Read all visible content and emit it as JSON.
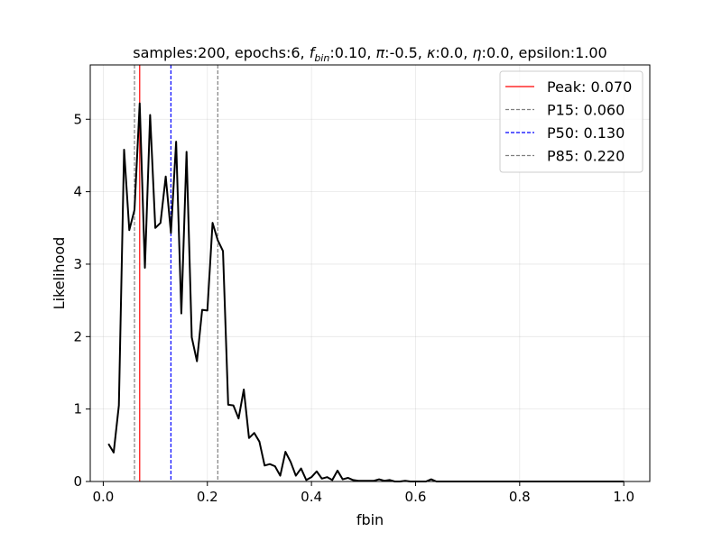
{
  "chart_data": {
    "type": "line",
    "title": {
      "prefix": "samples:200, epochs:6, ",
      "fbin_symbol": "f",
      "fbin_sub": "bin",
      "fbin_value": ":0.10, ",
      "pi_symbol": "π",
      "pi_value": ":-0.5, ",
      "kappa_symbol": "κ",
      "kappa_value": ":0.0, ",
      "eta_symbol": "η",
      "eta_value": ":0.0, epsilon:1.00"
    },
    "xlabel": "fbin",
    "ylabel": "Likelihood",
    "xlim": [
      -0.025,
      1.05
    ],
    "ylim": [
      0,
      5.75
    ],
    "xticks": [
      0.0,
      0.2,
      0.4,
      0.6,
      0.8,
      1.0
    ],
    "xtick_labels": [
      "0.0",
      "0.2",
      "0.4",
      "0.6",
      "0.8",
      "1.0"
    ],
    "yticks": [
      0,
      1,
      2,
      3,
      4,
      5
    ],
    "ytick_labels": [
      "0",
      "1",
      "2",
      "3",
      "4",
      "5"
    ],
    "grid": true,
    "legend_position": "top-right",
    "series": [
      {
        "color": "#000000",
        "x": [
          0.01,
          0.02,
          0.03,
          0.04,
          0.05,
          0.06,
          0.07,
          0.08,
          0.09,
          0.1,
          0.11,
          0.12,
          0.13,
          0.14,
          0.15,
          0.16,
          0.17,
          0.18,
          0.19,
          0.2,
          0.21,
          0.22,
          0.23,
          0.24,
          0.25,
          0.26,
          0.27,
          0.28,
          0.29,
          0.3,
          0.31,
          0.32,
          0.33,
          0.34,
          0.35,
          0.36,
          0.37,
          0.38,
          0.39,
          0.4,
          0.41,
          0.42,
          0.43,
          0.44,
          0.45,
          0.46,
          0.47,
          0.48,
          0.49,
          0.5,
          0.51,
          0.52,
          0.53,
          0.54,
          0.55,
          0.56,
          0.57,
          0.58,
          0.59,
          0.6,
          0.61,
          0.62,
          0.63,
          0.64,
          0.65,
          0.66,
          0.67,
          0.68,
          0.69,
          0.7,
          0.72,
          0.75,
          0.8,
          0.85,
          0.9,
          0.95,
          1.0
        ],
        "y": [
          0.52,
          0.4,
          1.05,
          4.58,
          3.47,
          3.75,
          5.22,
          2.95,
          5.06,
          3.5,
          3.57,
          4.21,
          3.43,
          4.69,
          2.32,
          4.55,
          1.99,
          1.66,
          2.37,
          2.36,
          3.57,
          3.33,
          3.18,
          1.06,
          1.05,
          0.87,
          1.27,
          0.6,
          0.67,
          0.55,
          0.22,
          0.24,
          0.21,
          0.08,
          0.41,
          0.27,
          0.08,
          0.18,
          0.02,
          0.06,
          0.14,
          0.04,
          0.06,
          0.02,
          0.15,
          0.03,
          0.05,
          0.02,
          0.01,
          0.01,
          0.01,
          0.01,
          0.03,
          0.01,
          0.02,
          0.0,
          0.0,
          0.01,
          0.0,
          0.0,
          0.0,
          0.0,
          0.03,
          0.0,
          0.0,
          0.0,
          0.0,
          0.0,
          0.0,
          0.0,
          0.0,
          0.0,
          0.0,
          0.0,
          0.0,
          0.0,
          0.0
        ]
      }
    ],
    "vlines": [
      {
        "name": "Peak: 0.070",
        "x": 0.07,
        "color": "#ff0000",
        "style": "solid"
      },
      {
        "name": "P15: 0.060",
        "x": 0.06,
        "color": "#808080",
        "style": "dashed"
      },
      {
        "name": "P50: 0.130",
        "x": 0.13,
        "color": "#0000ff",
        "style": "dashed"
      },
      {
        "name": "P85: 0.220",
        "x": 0.22,
        "color": "#808080",
        "style": "dashed"
      }
    ]
  }
}
